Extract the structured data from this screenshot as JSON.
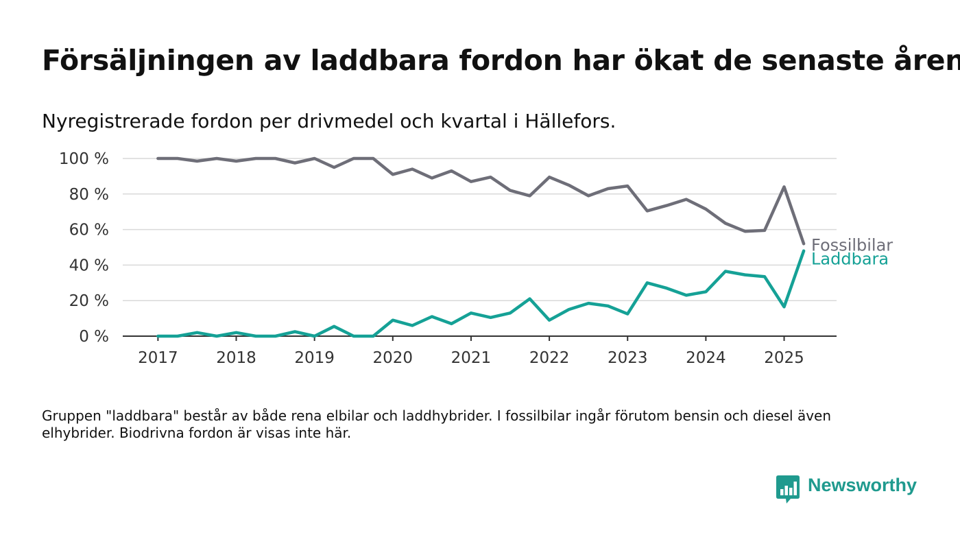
{
  "header": {
    "title": "Försäljningen av laddbara fordon har ökat de senaste åren",
    "subtitle": "Nyregistrerade fordon per drivmedel och kvartal i Hällefors."
  },
  "footer": {
    "note": "Gruppen \"laddbara\" består av både rena elbilar och laddhybrider. I fossilbilar ingår förutom bensin och diesel även elhybrider. Biodrivna fordon är visas inte här.",
    "brand": "Newsworthy",
    "brand_icon": "newsworthy-logo-icon"
  },
  "chart_data": {
    "type": "line",
    "x_unit": "year (quarterly observations, Q1 aligned to year tick)",
    "x": [
      2017.0,
      2017.25,
      2017.5,
      2017.75,
      2018.0,
      2018.25,
      2018.5,
      2018.75,
      2019.0,
      2019.25,
      2019.5,
      2019.75,
      2020.0,
      2020.25,
      2020.5,
      2020.75,
      2021.0,
      2021.25,
      2021.5,
      2021.75,
      2022.0,
      2022.25,
      2022.5,
      2022.75,
      2023.0,
      2023.25,
      2023.5,
      2023.75,
      2024.0,
      2024.25,
      2024.5,
      2024.75,
      2025.0,
      2025.25
    ],
    "xticks": [
      2017,
      2018,
      2019,
      2020,
      2021,
      2022,
      2023,
      2024,
      2025
    ],
    "xlim": [
      2016.55,
      2025.67
    ],
    "ylim": [
      0,
      100
    ],
    "yticks": [
      0,
      20,
      40,
      60,
      80,
      100
    ],
    "ytick_suffix": " %",
    "grid": true,
    "title": "",
    "xlabel": "",
    "ylabel": "",
    "legend": "inline labels at line ends",
    "series": [
      {
        "name": "Fossilbilar",
        "color": "#6e6e78",
        "values": [
          100,
          100,
          98.5,
          100,
          98.5,
          100,
          100,
          97.5,
          100,
          95,
          100,
          100,
          91,
          94,
          89,
          93,
          87,
          89.5,
          82,
          79,
          89.5,
          85,
          79,
          83,
          84.5,
          70.5,
          73.5,
          77,
          71.5,
          63.5,
          59,
          59.5,
          84,
          52
        ]
      },
      {
        "name": "Laddbara",
        "color": "#15a196",
        "values": [
          0,
          0,
          2,
          0,
          2,
          0,
          0,
          2.5,
          0,
          5.5,
          0,
          0,
          9,
          6,
          11,
          7,
          13,
          10.5,
          13,
          21,
          9,
          15,
          18.5,
          17,
          12.5,
          30,
          27,
          23,
          25,
          36.5,
          34.5,
          33.5,
          16.5,
          48
        ]
      }
    ]
  }
}
